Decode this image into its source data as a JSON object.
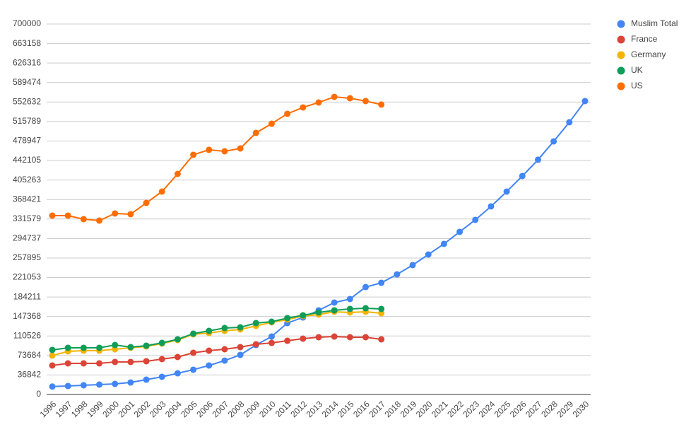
{
  "chart_data": {
    "type": "line",
    "categories": [
      "1996",
      "1997",
      "1998",
      "1999",
      "2000",
      "2001",
      "2002",
      "2003",
      "2004",
      "2005",
      "2006",
      "2007",
      "2008",
      "2009",
      "2010",
      "2011",
      "2012",
      "2013",
      "2014",
      "2015",
      "2016",
      "2017",
      "2018",
      "2019",
      "2020",
      "2021",
      "2022",
      "2023",
      "2024",
      "2025",
      "2026",
      "2027",
      "2028",
      "2029",
      "2030"
    ],
    "series": [
      {
        "name": "Muslim Total",
        "color": "#4285f4",
        "values": [
          15000,
          16000,
          17400,
          18700,
          20000,
          22700,
          28000,
          33400,
          40000,
          46800,
          54800,
          64000,
          74800,
          93500,
          109500,
          135000,
          145600,
          159000,
          173700,
          180400,
          203000,
          211000,
          227000,
          244500,
          264500,
          284600,
          307300,
          330000,
          355400,
          383400,
          412800,
          443600,
          478300,
          514400,
          554400
        ]
      },
      {
        "name": "France",
        "color": "#db4437",
        "values": [
          54800,
          58800,
          58800,
          58800,
          61500,
          61500,
          62800,
          66800,
          70800,
          78800,
          82800,
          85500,
          89500,
          94900,
          97500,
          101500,
          105500,
          108200,
          109500,
          108200,
          108200,
          104200,
          null,
          null,
          null,
          null,
          null,
          null,
          null,
          null,
          null,
          null,
          null,
          null,
          null
        ]
      },
      {
        "name": "Germany",
        "color": "#f4b400",
        "values": [
          73500,
          81500,
          82800,
          82800,
          85500,
          88200,
          90800,
          96200,
          102900,
          113600,
          116200,
          120200,
          122900,
          129600,
          136300,
          141600,
          148300,
          151000,
          156300,
          155000,
          156300,
          153600,
          null,
          null,
          null,
          null,
          null,
          null,
          null,
          null,
          null,
          null,
          null,
          null,
          null
        ]
      },
      {
        "name": "UK",
        "color": "#0f9d58",
        "values": [
          84200,
          88200,
          88200,
          88200,
          93500,
          89500,
          92200,
          97500,
          104200,
          114900,
          120200,
          125600,
          126900,
          134900,
          137600,
          144300,
          149600,
          155000,
          159000,
          161700,
          163000,
          161700,
          null,
          null,
          null,
          null,
          null,
          null,
          null,
          null,
          null,
          null,
          null,
          null,
          null
        ]
      },
      {
        "name": "US",
        "color": "#ff6d00",
        "values": [
          338000,
          338000,
          331300,
          328600,
          342000,
          340700,
          362000,
          383400,
          416800,
          452900,
          462300,
          459600,
          464900,
          494300,
          511700,
          530400,
          542400,
          551800,
          562400,
          559800,
          554400,
          547800,
          null,
          null,
          null,
          null,
          null,
          null,
          null,
          null,
          null,
          null,
          null,
          null,
          null
        ]
      }
    ],
    "ylim": [
      0,
      700000
    ],
    "yticks": [
      0,
      36842,
      73684,
      110526,
      147368,
      184211,
      221053,
      257895,
      294737,
      331579,
      368421,
      405263,
      442105,
      478947,
      515789,
      552632,
      589474,
      626316,
      663158,
      700000
    ],
    "grid": true,
    "legend": "right"
  }
}
